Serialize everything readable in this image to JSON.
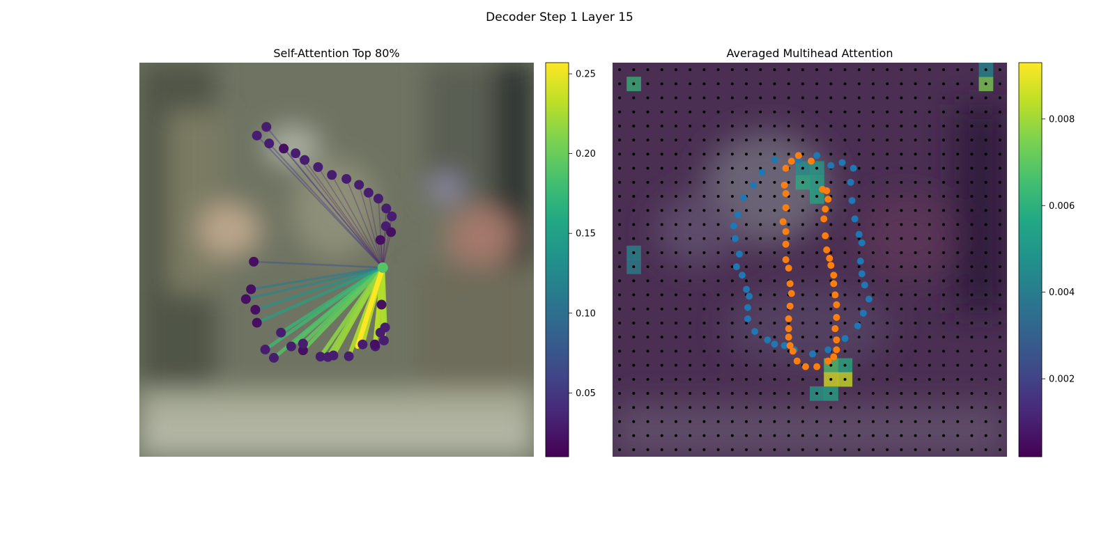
{
  "figure": {
    "suptitle": "Decoder Step 1 Layer 15"
  },
  "chart_data": [
    {
      "type": "scatter",
      "title": "Self-Attention Top 80%",
      "description_of_marks": "ring of points with attention lines from a query point",
      "query_point_index": 18,
      "points": [
        {
          "x": 0.459,
          "y": 0.746,
          "v": 0.03
        },
        {
          "x": 0.492,
          "y": 0.743,
          "v": 0.03
        },
        {
          "x": 0.531,
          "y": 0.745,
          "v": 0.03
        },
        {
          "x": 0.566,
          "y": 0.715,
          "v": 0.03
        },
        {
          "x": 0.598,
          "y": 0.72,
          "v": 0.03
        },
        {
          "x": 0.62,
          "y": 0.705,
          "v": 0.03
        },
        {
          "x": 0.597,
          "y": 0.715,
          "v": 0.02
        },
        {
          "x": 0.415,
          "y": 0.73,
          "v": 0.02
        },
        {
          "x": 0.385,
          "y": 0.72,
          "v": 0.03
        },
        {
          "x": 0.359,
          "y": 0.685,
          "v": 0.03
        },
        {
          "x": 0.294,
          "y": 0.627,
          "v": 0.02
        },
        {
          "x": 0.27,
          "y": 0.6,
          "v": 0.02
        },
        {
          "x": 0.341,
          "y": 0.749,
          "v": 0.03
        },
        {
          "x": 0.319,
          "y": 0.728,
          "v": 0.03
        },
        {
          "x": 0.415,
          "y": 0.713,
          "v": 0.03
        },
        {
          "x": 0.478,
          "y": 0.747,
          "v": 0.03
        },
        {
          "x": 0.611,
          "y": 0.685,
          "v": 0.03
        },
        {
          "x": 0.623,
          "y": 0.672,
          "v": 0.03
        },
        {
          "x": 0.617,
          "y": 0.52,
          "v": 0.19
        },
        {
          "x": 0.614,
          "y": 0.614,
          "v": 0.02
        },
        {
          "x": 0.298,
          "y": 0.66,
          "v": 0.02
        },
        {
          "x": 0.283,
          "y": 0.575,
          "v": 0.02
        },
        {
          "x": 0.29,
          "y": 0.505,
          "v": 0.02
        },
        {
          "x": 0.611,
          "y": 0.45,
          "v": 0.02
        },
        {
          "x": 0.625,
          "y": 0.415,
          "v": 0.03
        },
        {
          "x": 0.638,
          "y": 0.43,
          "v": 0.02
        },
        {
          "x": 0.64,
          "y": 0.39,
          "v": 0.03
        },
        {
          "x": 0.626,
          "y": 0.37,
          "v": 0.03
        },
        {
          "x": 0.606,
          "y": 0.345,
          "v": 0.03
        },
        {
          "x": 0.581,
          "y": 0.33,
          "v": 0.03
        },
        {
          "x": 0.557,
          "y": 0.31,
          "v": 0.03
        },
        {
          "x": 0.525,
          "y": 0.295,
          "v": 0.03
        },
        {
          "x": 0.488,
          "y": 0.285,
          "v": 0.03
        },
        {
          "x": 0.453,
          "y": 0.265,
          "v": 0.03
        },
        {
          "x": 0.419,
          "y": 0.247,
          "v": 0.03
        },
        {
          "x": 0.396,
          "y": 0.23,
          "v": 0.03
        },
        {
          "x": 0.366,
          "y": 0.218,
          "v": 0.02
        },
        {
          "x": 0.329,
          "y": 0.205,
          "v": 0.03
        },
        {
          "x": 0.298,
          "y": 0.185,
          "v": 0.03
        },
        {
          "x": 0.322,
          "y": 0.163,
          "v": 0.03
        }
      ],
      "colorbar": {
        "min": 0.01,
        "max": 0.257,
        "ticks": [
          0.05,
          0.1,
          0.15,
          0.2,
          0.25
        ],
        "tick_labels": [
          "0.05",
          "0.10",
          "0.15",
          "0.20",
          "0.25"
        ],
        "colormap": "viridis"
      },
      "axes_visible": false
    },
    {
      "type": "heatmap",
      "title": "Averaged Multihead Attention",
      "grid": [
        28,
        28
      ],
      "colorbar": {
        "min": 0.0002,
        "max": 0.0093,
        "ticks": [
          0.002,
          0.004,
          0.006,
          0.008
        ],
        "tick_labels": [
          "0.002",
          "0.004",
          "0.006",
          "0.008"
        ],
        "colormap": "viridis"
      },
      "cells": [
        {
          "r": 1,
          "c": 1,
          "v": 0.0062
        },
        {
          "r": 1,
          "c": 26,
          "v": 0.0075
        },
        {
          "r": 0,
          "c": 26,
          "v": 0.0045
        },
        {
          "r": 7,
          "c": 13,
          "v": 0.0048
        },
        {
          "r": 7,
          "c": 14,
          "v": 0.0052
        },
        {
          "r": 8,
          "c": 13,
          "v": 0.0058
        },
        {
          "r": 8,
          "c": 14,
          "v": 0.0055
        },
        {
          "r": 9,
          "c": 14,
          "v": 0.0056
        },
        {
          "r": 21,
          "c": 15,
          "v": 0.0068
        },
        {
          "r": 21,
          "c": 16,
          "v": 0.0058
        },
        {
          "r": 22,
          "c": 15,
          "v": 0.0088
        },
        {
          "r": 22,
          "c": 16,
          "v": 0.0086
        },
        {
          "r": 23,
          "c": 14,
          "v": 0.0052
        },
        {
          "r": 23,
          "c": 15,
          "v": 0.0056
        },
        {
          "r": 13,
          "c": 1,
          "v": 0.0045
        },
        {
          "r": 14,
          "c": 1,
          "v": 0.0042
        }
      ],
      "overlay_series": [
        {
          "color": "#1f77b4",
          "points": [
            [
              14.0,
              6.1
            ],
            [
              12.7,
              6.4
            ],
            [
              11.0,
              6.4
            ],
            [
              10.1,
              7.3
            ],
            [
              9.5,
              8.2
            ],
            [
              8.8,
              9.1
            ],
            [
              8.4,
              10.3
            ],
            [
              8.1,
              11.1
            ],
            [
              8.2,
              12.0
            ],
            [
              8.5,
              13.1
            ],
            [
              8.3,
              14.0
            ],
            [
              8.7,
              14.6
            ],
            [
              9.0,
              15.6
            ],
            [
              9.2,
              16.1
            ],
            [
              9.1,
              16.9
            ],
            [
              9.1,
              17.7
            ],
            [
              9.6,
              18.6
            ],
            [
              10.5,
              19.2
            ],
            [
              11.0,
              19.5
            ],
            [
              11.7,
              19.6
            ],
            [
              12.4,
              19.9
            ],
            [
              13.7,
              20.2
            ],
            [
              14.8,
              19.9
            ],
            [
              16.0,
              19.1
            ],
            [
              16.9,
              18.2
            ],
            [
              17.3,
              17.3
            ],
            [
              17.7,
              16.3
            ],
            [
              17.4,
              15.3
            ],
            [
              17.2,
              14.5
            ],
            [
              17.1,
              13.6
            ],
            [
              17.2,
              12.3
            ],
            [
              17.0,
              11.7
            ],
            [
              16.7,
              10.6
            ],
            [
              16.5,
              9.3
            ],
            [
              16.4,
              8.0
            ],
            [
              16.6,
              7.0
            ],
            [
              15.8,
              6.6
            ],
            [
              15.0,
              6.8
            ]
          ]
        },
        {
          "color": "#ff7f0e",
          "points": [
            [
              13.6,
              6.5
            ],
            [
              12.7,
              6.1
            ],
            [
              12.2,
              6.5
            ],
            [
              11.8,
              7.0
            ],
            [
              11.7,
              8.2
            ],
            [
              11.8,
              8.8
            ],
            [
              11.8,
              9.8
            ],
            [
              11.6,
              10.8
            ],
            [
              11.8,
              11.5
            ],
            [
              11.8,
              12.4
            ],
            [
              11.8,
              13.5
            ],
            [
              12.0,
              14.1
            ],
            [
              12.1,
              15.2
            ],
            [
              12.2,
              15.9
            ],
            [
              12.1,
              16.8
            ],
            [
              12.0,
              17.7
            ],
            [
              12.0,
              18.4
            ],
            [
              12.0,
              19.0
            ],
            [
              12.1,
              19.6
            ],
            [
              12.3,
              20.0
            ],
            [
              12.6,
              20.7
            ],
            [
              13.2,
              21.1
            ],
            [
              14.0,
              21.1
            ],
            [
              14.8,
              20.7
            ],
            [
              15.2,
              20.4
            ],
            [
              15.4,
              19.9
            ],
            [
              15.4,
              19.2
            ],
            [
              15.3,
              18.4
            ],
            [
              15.4,
              17.6
            ],
            [
              15.4,
              16.7
            ],
            [
              15.3,
              16.0
            ],
            [
              15.2,
              15.2
            ],
            [
              15.2,
              14.6
            ],
            [
              15.0,
              13.9
            ],
            [
              14.9,
              13.4
            ],
            [
              14.7,
              12.8
            ],
            [
              14.6,
              11.8
            ],
            [
              14.5,
              10.6
            ],
            [
              14.6,
              9.9
            ],
            [
              14.8,
              9.2
            ],
            [
              14.7,
              8.6
            ],
            [
              14.4,
              8.5
            ]
          ]
        }
      ],
      "axes_visible": false
    }
  ]
}
